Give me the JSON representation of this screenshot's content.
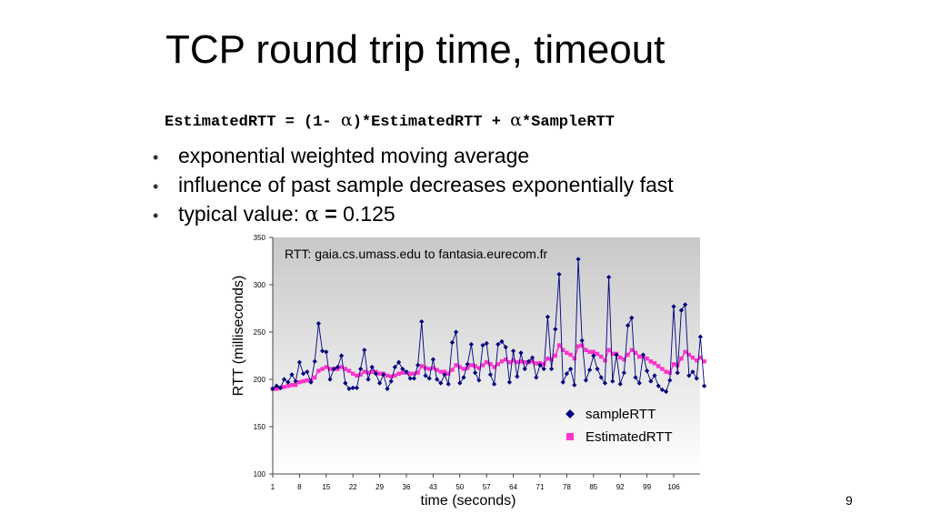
{
  "slide": {
    "title": "TCP round trip time, timeout",
    "formula": {
      "part1": "EstimatedRTT = (1- ",
      "alpha": "α",
      "part2": ")*EstimatedRTT + ",
      "part3": "*SampleRTT"
    },
    "bullets": [
      {
        "text": "exponential weighted moving average"
      },
      {
        "text": "influence of past sample decreases exponentially fast"
      },
      {
        "prefix": "typical value: ",
        "alpha": "α",
        "eq": " = ",
        "value": "0.125"
      }
    ],
    "bullet_glyph": "•",
    "page_number": "9"
  },
  "chart_data": {
    "type": "line",
    "title": "RTT: gaia.cs.umass.edu to fantasia.eurecom.fr",
    "xlabel": "time (seconds)",
    "ylabel": "RTT (milliseconds)",
    "ylim": [
      100,
      350
    ],
    "yticks": [
      100,
      150,
      200,
      250,
      300,
      350
    ],
    "xticks": [
      1,
      8,
      15,
      22,
      29,
      36,
      43,
      50,
      57,
      64,
      71,
      78,
      85,
      92,
      99,
      106
    ],
    "xlim": [
      1,
      111
    ],
    "grid": false,
    "legend_position": "bottom-right",
    "background": "#d8d8d8",
    "series": [
      {
        "name": "sampleRTT",
        "color": "#000080",
        "marker": "diamond",
        "values": [
          190,
          193,
          191,
          200,
          197,
          205,
          198,
          218,
          206,
          208,
          197,
          219,
          259,
          230,
          229,
          200,
          211,
          213,
          225,
          196,
          190,
          191,
          191,
          211,
          231,
          200,
          213,
          206,
          196,
          205,
          190,
          198,
          213,
          218,
          211,
          208,
          201,
          201,
          215,
          261,
          204,
          201,
          221,
          200,
          196,
          205,
          195,
          239,
          250,
          196,
          202,
          216,
          237,
          207,
          199,
          236,
          238,
          205,
          195,
          237,
          240,
          234,
          197,
          230,
          203,
          228,
          211,
          219,
          223,
          202,
          215,
          211,
          266,
          211,
          253,
          311,
          197,
          206,
          211,
          194,
          327,
          241,
          199,
          210,
          225,
          211,
          202,
          196,
          308,
          198,
          226,
          195,
          207,
          257,
          265,
          202,
          196,
          226,
          209,
          198,
          204,
          193,
          189,
          187,
          199,
          277,
          207,
          273,
          279,
          204,
          208,
          201,
          245,
          193
        ]
      },
      {
        "name": "EstimatedRTT",
        "color": "#ff33cc",
        "marker": "square",
        "values": [
          190,
          190,
          191,
          192,
          193,
          194,
          194,
          197,
          198,
          199,
          199,
          202,
          209,
          211,
          213,
          211,
          211,
          211,
          213,
          211,
          209,
          206,
          204,
          205,
          208,
          207,
          208,
          208,
          206,
          206,
          204,
          203,
          204,
          206,
          207,
          207,
          206,
          206,
          207,
          214,
          212,
          211,
          212,
          210,
          208,
          208,
          206,
          210,
          215,
          213,
          211,
          212,
          215,
          214,
          212,
          215,
          218,
          216,
          213,
          216,
          219,
          221,
          218,
          220,
          218,
          219,
          218,
          218,
          219,
          217,
          217,
          216,
          222,
          221,
          225,
          236,
          231,
          228,
          226,
          222,
          235,
          236,
          231,
          229,
          229,
          227,
          224,
          220,
          231,
          227,
          227,
          223,
          221,
          226,
          231,
          228,
          224,
          224,
          222,
          219,
          217,
          214,
          211,
          208,
          207,
          216,
          215,
          222,
          229,
          226,
          223,
          220,
          223,
          219
        ]
      }
    ]
  }
}
